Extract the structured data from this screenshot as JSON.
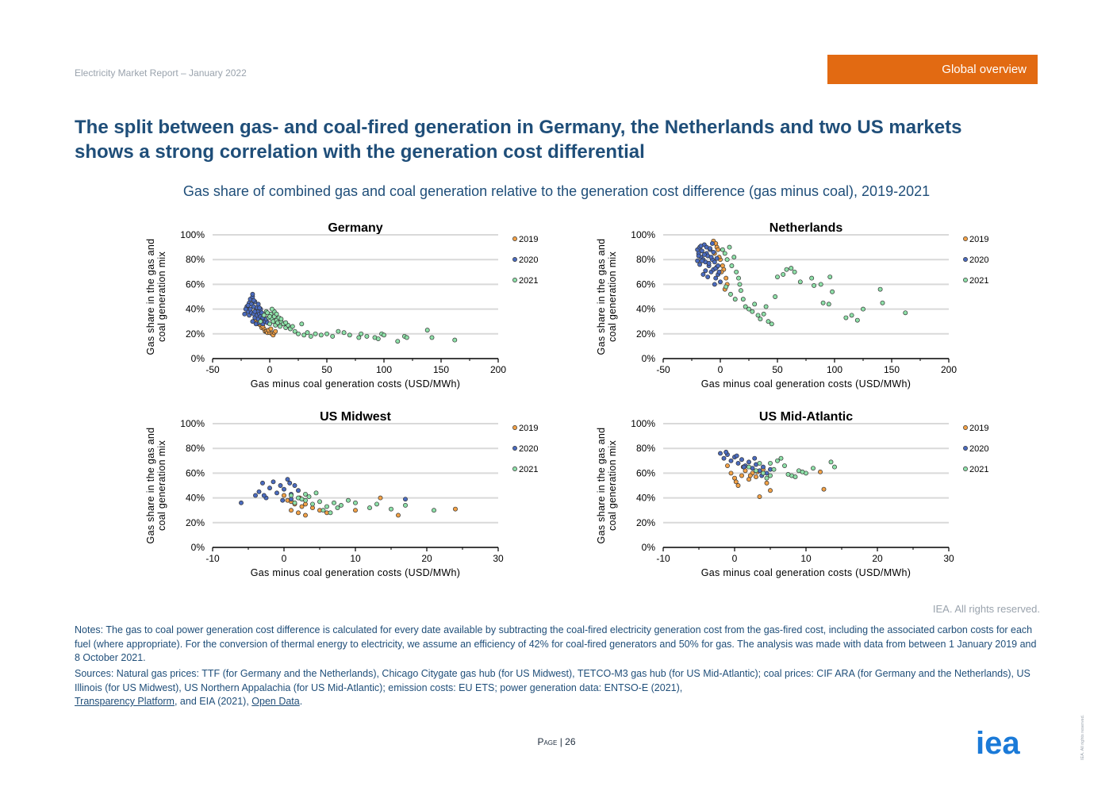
{
  "header": {
    "report": "Electricity Market Report – January 2022",
    "section": "Global overview"
  },
  "title": "The split between gas- and coal-fired generation in Germany, the Netherlands and two US markets shows a strong correlation with the generation cost differential",
  "subtitle": "Gas share of combined gas and coal generation relative to the generation cost difference (gas minus coal), 2019-2021",
  "colors": {
    "s2019": "#f2a146",
    "s2020": "#4a6bbf",
    "s2021": "#8ee0a8",
    "accent": "#e26a12",
    "brand": "#1f4e79"
  },
  "chart_data": [
    {
      "type": "scatter",
      "title": "Germany",
      "xlabel": "Gas minus coal generation costs (USD/MWh)",
      "ylabel": [
        "Gas share in the gas and",
        "coal generation mix"
      ],
      "xlim": [
        -50,
        200
      ],
      "xticks": [
        -50,
        0,
        50,
        100,
        150,
        200
      ],
      "ylim": [
        0,
        100
      ],
      "yticks": [
        "0%",
        "20%",
        "40%",
        "60%",
        "80%",
        "100%"
      ],
      "legend": [
        "2019",
        "2020",
        "2021"
      ],
      "series": [
        {
          "name": "2019",
          "x": [
            -12,
            -10,
            -8,
            -7,
            -5,
            -4,
            -3,
            -2,
            0,
            2,
            3,
            -9,
            -6,
            -1,
            1,
            4,
            5,
            -11
          ],
          "y": [
            30,
            28,
            27,
            25,
            24,
            22,
            22,
            21,
            21,
            20,
            19,
            32,
            26,
            23,
            24,
            21,
            22,
            29
          ]
        },
        {
          "name": "2020",
          "x": [
            -20,
            -19,
            -18,
            -18,
            -17,
            -17,
            -16,
            -16,
            -15,
            -15,
            -14,
            -14,
            -13,
            -13,
            -12,
            -12,
            -11,
            -11,
            -10,
            -10,
            -9,
            -9,
            -8,
            -8,
            -7,
            -7,
            -6,
            -6,
            -5,
            -4,
            -3,
            -2,
            -21,
            -22,
            -19,
            -15,
            -14,
            -13,
            -10,
            -9
          ],
          "y": [
            42,
            38,
            45,
            35,
            40,
            48,
            37,
            44,
            30,
            50,
            36,
            42,
            33,
            46,
            39,
            28,
            41,
            35,
            38,
            32,
            36,
            29,
            34,
            40,
            31,
            37,
            33,
            28,
            35,
            30,
            32,
            29,
            40,
            36,
            43,
            52,
            47,
            38,
            44,
            41
          ]
        },
        {
          "name": "2021",
          "x": [
            -8,
            -5,
            -3,
            -1,
            0,
            1,
            2,
            3,
            4,
            5,
            6,
            7,
            8,
            9,
            10,
            12,
            14,
            16,
            18,
            20,
            22,
            25,
            28,
            30,
            33,
            36,
            40,
            45,
            50,
            55,
            60,
            65,
            70,
            78,
            80,
            85,
            92,
            95,
            98,
            100,
            112,
            118,
            120,
            138,
            142,
            162,
            4,
            6,
            10,
            14,
            2,
            0,
            -2
          ],
          "y": [
            30,
            35,
            38,
            33,
            28,
            36,
            32,
            30,
            34,
            27,
            31,
            29,
            33,
            26,
            30,
            28,
            25,
            27,
            24,
            26,
            22,
            20,
            28,
            19,
            21,
            18,
            20,
            19,
            20,
            18,
            22,
            21,
            19,
            17,
            20,
            18,
            17,
            16,
            20,
            19,
            14,
            18,
            17,
            23,
            17,
            15,
            38,
            36,
            32,
            29,
            40,
            34,
            37
          ]
        }
      ]
    },
    {
      "type": "scatter",
      "title": "Netherlands",
      "xlabel": "Gas minus coal generation costs (USD/MWh)",
      "ylabel": [
        "Gas share in the gas and",
        "coal generation mix"
      ],
      "xlim": [
        -50,
        200
      ],
      "xticks": [
        -50,
        0,
        50,
        100,
        150,
        200
      ],
      "ylim": [
        0,
        100
      ],
      "yticks": [
        "0%",
        "20%",
        "40%",
        "60%",
        "80%",
        "100%"
      ],
      "legend": [
        "2019",
        "2020",
        "2021"
      ],
      "series": [
        {
          "name": "2019",
          "x": [
            -6,
            -4,
            -3,
            -2,
            0,
            2,
            3,
            5,
            6,
            -5,
            -1,
            1,
            4
          ],
          "y": [
            95,
            93,
            90,
            88,
            80,
            75,
            72,
            65,
            60,
            85,
            82,
            70,
            56
          ]
        },
        {
          "name": "2020",
          "x": [
            -20,
            -19,
            -18,
            -17,
            -16,
            -15,
            -14,
            -13,
            -12,
            -11,
            -10,
            -9,
            -8,
            -7,
            -6,
            -5,
            -4,
            -3,
            -2,
            -1,
            0,
            -18,
            -16,
            -14,
            -12,
            -10,
            -8,
            -6,
            -4,
            -2,
            -15,
            -13,
            -11,
            -9,
            -7,
            -5,
            -3,
            -17,
            -19,
            -20
          ],
          "y": [
            88,
            85,
            90,
            82,
            87,
            80,
            92,
            78,
            85,
            83,
            75,
            88,
            70,
            80,
            72,
            78,
            65,
            74,
            68,
            70,
            62,
            76,
            79,
            84,
            90,
            77,
            82,
            86,
            73,
            75,
            68,
            71,
            66,
            89,
            93,
            60,
            81,
            91,
            83,
            79
          ]
        },
        {
          "name": "2021",
          "x": [
            2,
            4,
            6,
            8,
            10,
            12,
            14,
            16,
            18,
            20,
            22,
            25,
            28,
            30,
            33,
            35,
            38,
            40,
            42,
            45,
            48,
            50,
            55,
            58,
            62,
            65,
            70,
            80,
            82,
            88,
            90,
            95,
            96,
            98,
            110,
            115,
            120,
            125,
            140,
            142,
            162,
            5,
            9,
            13,
            17
          ],
          "y": [
            88,
            85,
            80,
            90,
            75,
            82,
            70,
            65,
            55,
            48,
            42,
            40,
            38,
            44,
            35,
            32,
            36,
            42,
            30,
            28,
            50,
            66,
            68,
            72,
            73,
            70,
            62,
            65,
            59,
            60,
            45,
            44,
            66,
            54,
            33,
            35,
            31,
            40,
            56,
            45,
            37,
            58,
            52,
            48,
            60
          ]
        }
      ]
    },
    {
      "type": "scatter",
      "title": "US Midwest",
      "xlabel": "Gas minus coal generation costs (USD/MWh)",
      "ylabel": [
        "Gas share in the gas and",
        "coal generation mix"
      ],
      "xlim": [
        -10,
        30
      ],
      "xticks": [
        -10,
        0,
        10,
        20,
        30
      ],
      "ylim": [
        0,
        100
      ],
      "yticks": [
        "0%",
        "20%",
        "40%",
        "60%",
        "80%",
        "100%"
      ],
      "legend": [
        "2019",
        "2020",
        "2021"
      ],
      "series": [
        {
          "name": "2019",
          "x": [
            0,
            1,
            1.5,
            2,
            2.5,
            3,
            3,
            4,
            5,
            6,
            10,
            13.5,
            16,
            24,
            1,
            2.2,
            0.5
          ],
          "y": [
            42,
            30,
            35,
            28,
            33,
            26,
            35,
            32,
            30,
            28,
            30,
            40,
            26,
            31,
            37,
            40,
            38
          ]
        },
        {
          "name": "2020",
          "x": [
            -6,
            -4,
            -3.5,
            -3,
            -2.5,
            -2,
            -1.5,
            -1,
            -0.5,
            0,
            0.5,
            1,
            1.5,
            2,
            1,
            17,
            -2.8,
            -0.2,
            0.8
          ],
          "y": [
            36,
            42,
            45,
            52,
            40,
            48,
            53,
            44,
            50,
            47,
            55,
            43,
            50,
            46,
            39,
            39,
            42,
            38,
            52
          ]
        },
        {
          "name": "2021",
          "x": [
            2,
            3,
            4,
            5,
            6,
            7,
            8,
            9,
            10,
            1,
            2.5,
            3.5,
            4.5,
            5.5,
            6.5,
            7.5,
            12,
            13,
            15,
            17,
            21,
            1.5,
            3
          ],
          "y": [
            40,
            38,
            35,
            37,
            33,
            36,
            34,
            38,
            36,
            42,
            39,
            41,
            44,
            30,
            28,
            32,
            32,
            35,
            31,
            34,
            30,
            36,
            43
          ]
        }
      ]
    },
    {
      "type": "scatter",
      "title": "US Mid-Atlantic",
      "xlabel": "Gas minus coal generation costs (USD/MWh)",
      "ylabel": [
        "Gas share in the gas and",
        "coal generation mix"
      ],
      "xlim": [
        -10,
        30
      ],
      "xticks": [
        -10,
        0,
        10,
        20,
        30
      ],
      "ylim": [
        0,
        100
      ],
      "yticks": [
        "0%",
        "20%",
        "40%",
        "60%",
        "80%",
        "100%"
      ],
      "legend": [
        "2019",
        "2020",
        "2021"
      ],
      "series": [
        {
          "name": "2019",
          "x": [
            -1,
            -0.5,
            0,
            0.5,
            1,
            1.5,
            2,
            2.5,
            3,
            3.5,
            4,
            4.5,
            5,
            0.2,
            1.2,
            2.2,
            3.2,
            12,
            12.5
          ],
          "y": [
            66,
            60,
            56,
            50,
            58,
            62,
            55,
            60,
            57,
            41,
            63,
            52,
            46,
            53,
            65,
            58,
            61,
            61,
            47
          ]
        },
        {
          "name": "2020",
          "x": [
            -2,
            -1.5,
            -1,
            -0.5,
            0,
            0.5,
            1,
            1.5,
            2,
            2.5,
            3,
            3.5,
            4,
            4.5,
            5,
            -1.2,
            0.3,
            1.3,
            2.8,
            3.8
          ],
          "y": [
            76,
            72,
            75,
            70,
            73,
            68,
            71,
            66,
            69,
            64,
            67,
            62,
            65,
            60,
            63,
            77,
            74,
            65,
            72,
            58
          ]
        },
        {
          "name": "2021",
          "x": [
            2,
            3,
            4,
            5,
            6,
            7,
            8,
            9,
            10,
            11,
            4.5,
            5.5,
            6.5,
            7.5,
            8.5,
            9.5,
            13.5,
            14,
            3.5,
            5
          ],
          "y": [
            65,
            62,
            60,
            68,
            70,
            66,
            58,
            62,
            60,
            64,
            56,
            63,
            72,
            59,
            57,
            61,
            69,
            65,
            68,
            58
          ]
        }
      ]
    }
  ],
  "rights": "IEA. All rights reserved.",
  "notes": {
    "notes_text": "Notes: The gas to coal power generation cost difference is calculated for every date available by subtracting the coal-fired electricity generation cost from the gas-fired cost, including the associated carbon costs for each fuel (where appropriate). For the conversion of thermal energy to electricity, we assume an efficiency of 42% for coal-fired generators and 50% for gas. The analysis was made with data from between 1 January 2019 and 8 October 2021.",
    "sources_text": "Sources: Natural gas prices: TTF (for Germany and the Netherlands), Chicago Citygate gas hub (for US Midwest), TETCO-M3 gas hub (for US Mid-Atlantic); coal prices: CIF ARA (for Germany and the Netherlands), US Illinois (for US Midwest), US Northern Appalachia (for US Mid-Atlantic); emission costs: EU ETS; power generation data: ENTSO-E (2021),",
    "link1": "Transparency Platform",
    "between": ", and EIA (2021),",
    "link2": "Open Data",
    "end": "."
  },
  "footer": {
    "page_label": "Page",
    "page_sep": "|",
    "page_number": "26",
    "logo": "iea",
    "vertical": "IEA. All rights reserved."
  }
}
